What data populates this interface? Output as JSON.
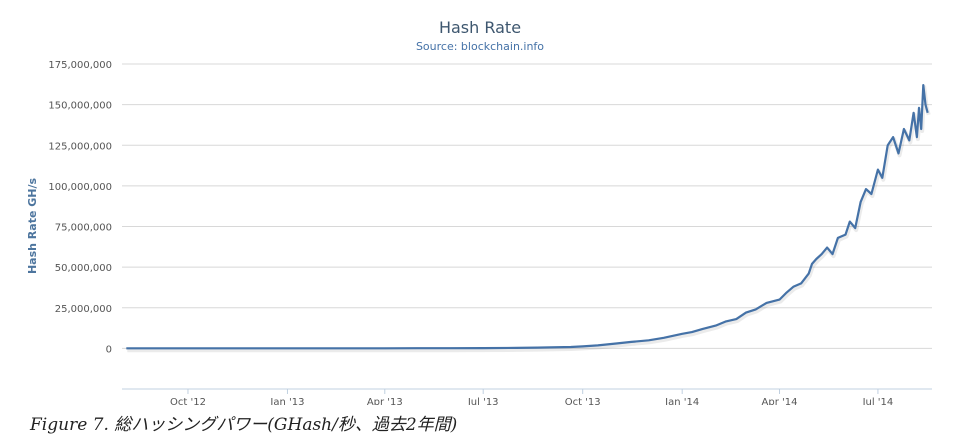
{
  "chart_data": {
    "type": "line",
    "title": "Hash Rate",
    "subtitle": "Source: blockchain.info",
    "ylabel": "Hash Rate GH/s",
    "ylim": [
      -25000000,
      175000000
    ],
    "yticks": [
      0,
      25000000,
      50000000,
      75000000,
      100000000,
      125000000,
      150000000,
      175000000
    ],
    "ytick_labels": [
      "0",
      "25,000,000",
      "50,000,000",
      "75,000,000",
      "100,000,000",
      "125,000,000",
      "150,000,000",
      "175,000,000"
    ],
    "xlim": [
      "2012-08-01",
      "2014-08-20"
    ],
    "xticks": [
      "2012-10-01",
      "2013-01-01",
      "2013-04-01",
      "2013-07-01",
      "2013-10-01",
      "2014-01-01",
      "2014-04-01",
      "2014-07-01"
    ],
    "xtick_labels": [
      "Oct '12",
      "Jan '13",
      "Apr '13",
      "Jul '13",
      "Oct '13",
      "Jan '14",
      "Apr '14",
      "Jul '14"
    ],
    "grid": true,
    "series": [
      {
        "color": "#4572a7",
        "x": [
          "2012-08-05",
          "2012-09-01",
          "2012-10-01",
          "2012-11-01",
          "2012-12-01",
          "2013-01-01",
          "2013-02-01",
          "2013-03-01",
          "2013-04-01",
          "2013-05-01",
          "2013-06-01",
          "2013-07-01",
          "2013-08-01",
          "2013-08-20",
          "2013-09-01",
          "2013-09-20",
          "2013-10-01",
          "2013-10-15",
          "2013-11-01",
          "2013-11-15",
          "2013-12-01",
          "2013-12-15",
          "2014-01-01",
          "2014-01-10",
          "2014-01-20",
          "2014-02-01",
          "2014-02-10",
          "2014-02-20",
          "2014-03-01",
          "2014-03-10",
          "2014-03-20",
          "2014-04-01",
          "2014-04-07",
          "2014-04-14",
          "2014-04-21",
          "2014-04-28",
          "2014-05-01",
          "2014-05-05",
          "2014-05-10",
          "2014-05-15",
          "2014-05-20",
          "2014-05-25",
          "2014-06-01",
          "2014-06-05",
          "2014-06-10",
          "2014-06-15",
          "2014-06-20",
          "2014-06-25",
          "2014-07-01",
          "2014-07-05",
          "2014-07-10",
          "2014-07-15",
          "2014-07-20",
          "2014-07-25",
          "2014-07-30",
          "2014-08-03",
          "2014-08-06",
          "2014-08-08",
          "2014-08-10",
          "2014-08-12",
          "2014-08-14",
          "2014-08-16"
        ],
        "values": [
          18000,
          20000,
          23000,
          25000,
          27000,
          30000,
          35000,
          50000,
          65000,
          90000,
          120000,
          200000,
          300000,
          450000,
          600000,
          850000,
          1200000,
          1800000,
          3000000,
          4000000,
          5000000,
          6500000,
          9000000,
          10000000,
          12000000,
          14000000,
          16500000,
          18000000,
          22000000,
          24000000,
          28000000,
          30000000,
          34000000,
          38000000,
          40000000,
          46000000,
          52000000,
          55000000,
          58000000,
          62000000,
          58000000,
          68000000,
          70000000,
          78000000,
          74000000,
          90000000,
          98000000,
          95000000,
          110000000,
          105000000,
          125000000,
          130000000,
          120000000,
          135000000,
          128000000,
          145000000,
          130000000,
          148000000,
          135000000,
          162000000,
          150000000,
          145000000
        ]
      }
    ]
  },
  "caption": "Figure 7. 総ハッシングパワー(GHash/秒、過去2年間)"
}
